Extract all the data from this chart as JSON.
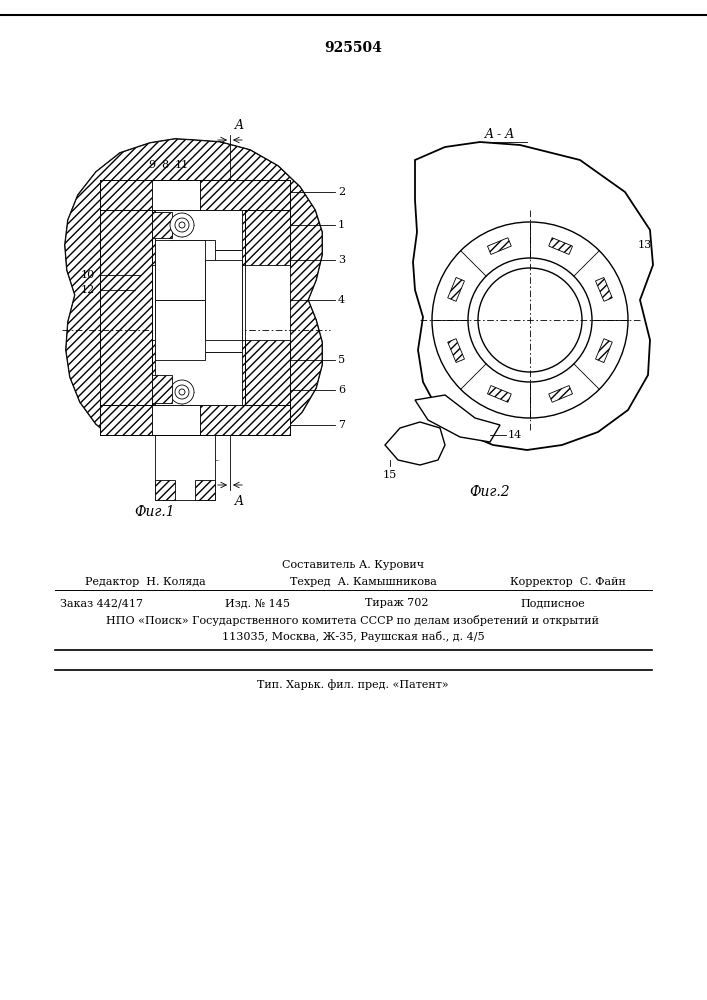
{
  "patent_number": "925504",
  "background_color": "#ffffff",
  "fig1_label": "Фиг.1",
  "fig2_label": "Фиг.2",
  "section_label": "A - A",
  "footer_texts": {
    "sestavitel": "Составитель А. Курович",
    "redaktor": "Редактор  Н. Коляда",
    "tehred": "Техред  А. Камышникова",
    "korrektor": "Корректор  С. Файн",
    "zakaz": "Заказ 442/417",
    "izd": "Изд. № 145",
    "tirazh": "Тираж 702",
    "podpisnoe": "Подписное",
    "npo": "НПО «Поиск» Государственного комитета СССР по делам изобретений и открытий",
    "address": "113035, Москва, Ж-35, Раушская наб., д. 4/5",
    "tip": "Тип. Харьк. фил. пред. «Патент»"
  }
}
